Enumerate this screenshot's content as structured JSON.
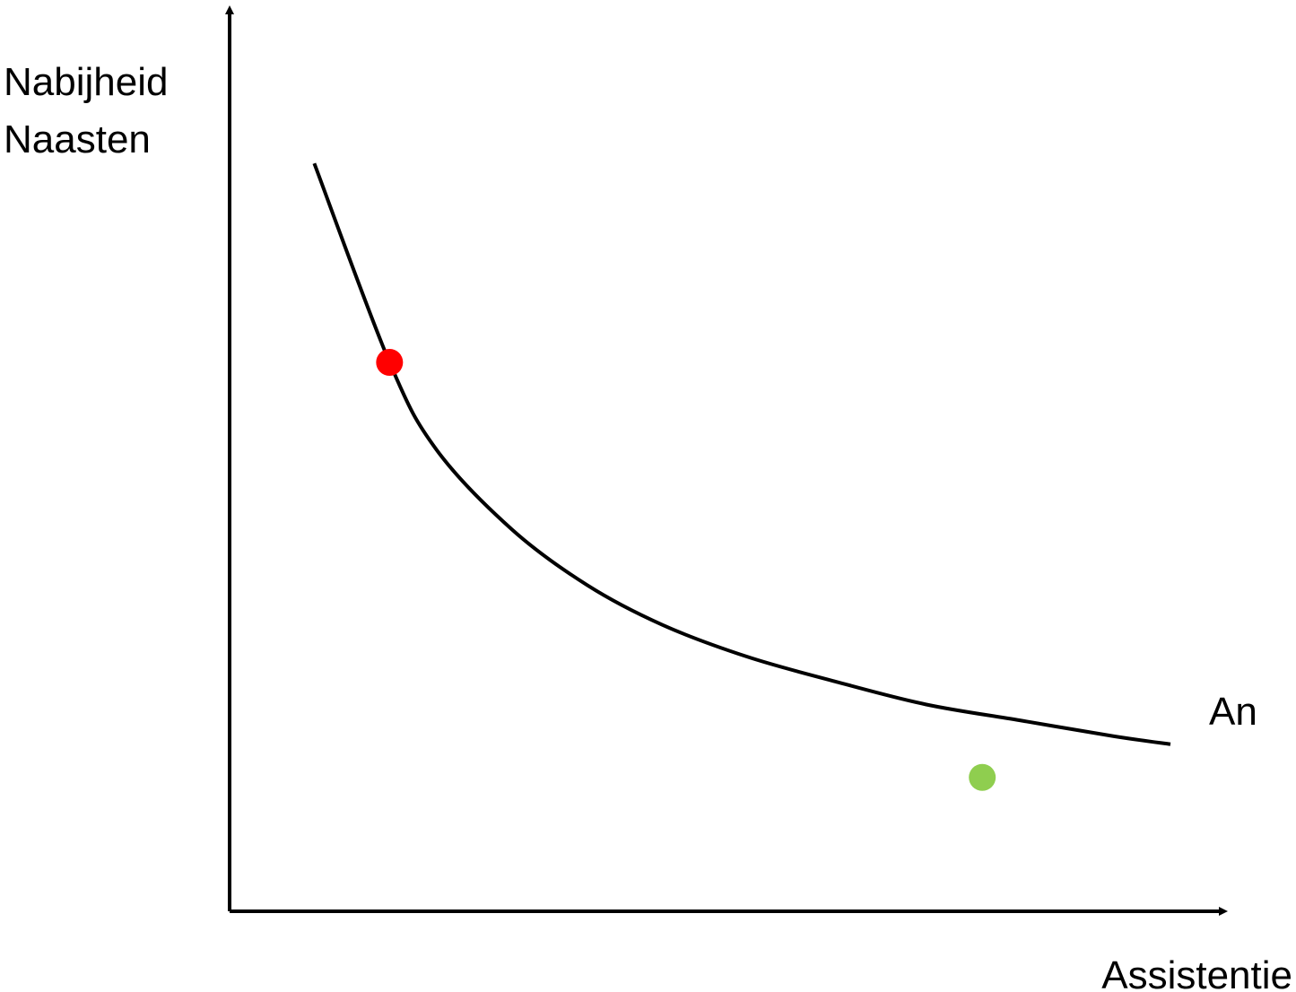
{
  "chart_data": {
    "type": "line",
    "ylabel": [
      "Nabijheid",
      "Naasten"
    ],
    "xlabel": "Assistentie",
    "grid": false,
    "ticks": false,
    "series": [
      {
        "name": "An",
        "color": "#000000",
        "curve": "decreasing-convex",
        "x": [
          0.09,
          0.17,
          0.22,
          0.3,
          0.38,
          0.46,
          0.55,
          0.64,
          0.74,
          0.84,
          0.94,
          1.0
        ],
        "y": [
          0.94,
          0.69,
          0.58,
          0.48,
          0.41,
          0.36,
          0.32,
          0.29,
          0.26,
          0.24,
          0.22,
          0.21
        ]
      }
    ],
    "points": [
      {
        "label": "",
        "color": "#ff0000",
        "x": 0.17,
        "y": 0.69
      },
      {
        "label": "",
        "color": "#8fce4f",
        "x": 0.8,
        "y": 0.21
      }
    ]
  }
}
